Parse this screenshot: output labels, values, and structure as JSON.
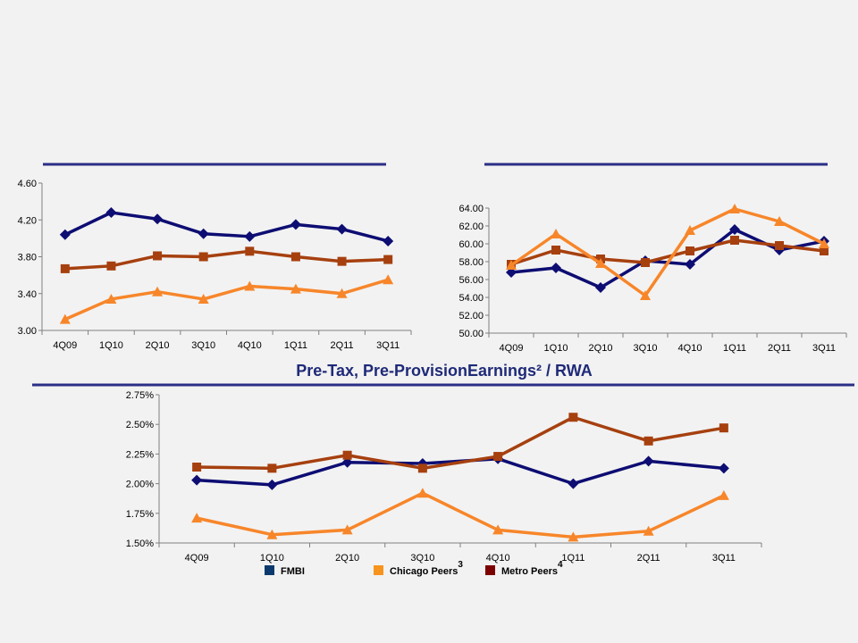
{
  "colors": {
    "fmbi": "#0d0d73",
    "chicago": "#f7862a",
    "metro": "#a6400f",
    "rule": "#2b2f86",
    "axis": "#808080"
  },
  "legend": [
    {
      "label": "FMBI",
      "sup": "",
      "color": "#0d3a6e"
    },
    {
      "label": "Chicago Peers",
      "sup": "3",
      "color": "#f7941d"
    },
    {
      "label": "Metro Peers",
      "sup": "4",
      "color": "#7d0000"
    }
  ],
  "chart_data": [
    {
      "type": "line",
      "title": "",
      "x": [
        "4Q09",
        "1Q10",
        "2Q10",
        "3Q10",
        "4Q10",
        "1Q11",
        "2Q11",
        "3Q11"
      ],
      "ylim": [
        3.0,
        4.6
      ],
      "yticks": [
        "3.00",
        "3.40",
        "3.80",
        "4.20",
        "4.60"
      ],
      "grid": false,
      "series": [
        {
          "key": "fmbi",
          "marker": "diamond",
          "values": [
            4.04,
            4.28,
            4.21,
            4.05,
            4.02,
            4.15,
            4.1,
            3.97
          ]
        },
        {
          "key": "metro",
          "marker": "square",
          "values": [
            3.67,
            3.7,
            3.81,
            3.8,
            3.86,
            3.8,
            3.75,
            3.77
          ]
        },
        {
          "key": "chicago",
          "marker": "triangle",
          "values": [
            3.12,
            3.34,
            3.42,
            3.34,
            3.48,
            3.45,
            3.4,
            3.55
          ]
        }
      ]
    },
    {
      "type": "line",
      "title": "",
      "x": [
        "4Q09",
        "1Q10",
        "2Q10",
        "3Q10",
        "4Q10",
        "1Q11",
        "2Q11",
        "3Q11"
      ],
      "ylim": [
        50,
        64
      ],
      "yticks": [
        "50.00",
        "52.00",
        "54.00",
        "56.00",
        "58.00",
        "60.00",
        "62.00",
        "64.00"
      ],
      "grid": false,
      "series": [
        {
          "key": "fmbi",
          "marker": "diamond",
          "values": [
            56.8,
            57.3,
            55.1,
            58.1,
            57.7,
            61.6,
            59.3,
            60.3
          ]
        },
        {
          "key": "metro",
          "marker": "square",
          "values": [
            57.7,
            59.3,
            58.3,
            57.9,
            59.2,
            60.4,
            59.8,
            59.2
          ]
        },
        {
          "key": "chicago",
          "marker": "triangle",
          "values": [
            57.6,
            61.1,
            57.8,
            54.2,
            61.5,
            63.9,
            62.5,
            60.0
          ]
        }
      ]
    },
    {
      "type": "line",
      "title": "Pre-Tax, Pre-ProvisionEarnings² / RWA",
      "x": [
        "4Q09",
        "1Q10",
        "2Q10",
        "3Q10",
        "4Q10",
        "1Q11",
        "2Q11",
        "3Q11"
      ],
      "ylim": [
        1.5,
        2.75
      ],
      "yticks": [
        "1.50%",
        "1.75%",
        "2.00%",
        "2.25%",
        "2.50%",
        "2.75%"
      ],
      "grid": false,
      "series": [
        {
          "key": "fmbi",
          "marker": "diamond",
          "values": [
            2.03,
            1.99,
            2.18,
            2.17,
            2.21,
            2.0,
            2.19,
            2.13
          ]
        },
        {
          "key": "metro",
          "marker": "square",
          "values": [
            2.14,
            2.13,
            2.24,
            2.13,
            2.23,
            2.56,
            2.36,
            2.47
          ]
        },
        {
          "key": "chicago",
          "marker": "triangle",
          "values": [
            1.71,
            1.57,
            1.61,
            1.92,
            1.61,
            1.55,
            1.6,
            1.9
          ]
        }
      ]
    }
  ]
}
